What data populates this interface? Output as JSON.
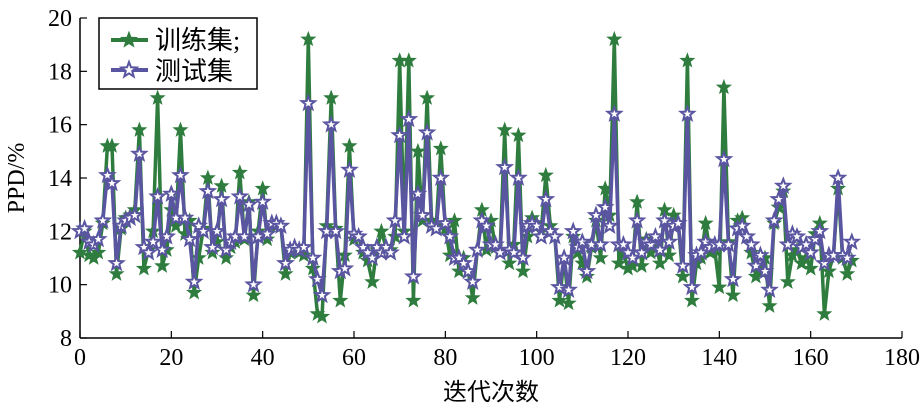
{
  "chart_data": {
    "type": "line",
    "title": "",
    "xlabel": "迭代次数",
    "ylabel": "PPD/%",
    "xlim": [
      0,
      180
    ],
    "ylim": [
      8,
      20
    ],
    "xticks": [
      0,
      20,
      40,
      60,
      80,
      100,
      120,
      140,
      160,
      180
    ],
    "yticks": [
      8,
      10,
      12,
      14,
      16,
      18,
      20
    ],
    "grid": false,
    "legend_position": "top-left",
    "colors": {
      "train": "#2e7d3e",
      "test": "#5a55a0"
    },
    "series": [
      {
        "name": "训练集;",
        "marker": "filled-star",
        "values": [
          11.2,
          12.0,
          11.1,
          11.0,
          11.2,
          12.3,
          15.2,
          15.2,
          10.4,
          12.1,
          12.5,
          12.6,
          12.8,
          15.8,
          10.6,
          11.3,
          12.0,
          17.0,
          10.7,
          11.3,
          12.8,
          12.2,
          15.8,
          11.9,
          12.4,
          9.7,
          11.0,
          12.1,
          14.0,
          11.2,
          11.6,
          13.7,
          11.0,
          11.4,
          11.6,
          14.2,
          11.7,
          13.1,
          9.6,
          12.0,
          13.6,
          11.7,
          12.3,
          12.2,
          12.2,
          10.4,
          11.2,
          11.3,
          11.2,
          11.1,
          19.2,
          10.6,
          8.9,
          8.8,
          12.2,
          17.0,
          12.1,
          9.4,
          11.1,
          15.2,
          11.7,
          11.8,
          11.2,
          10.9,
          10.1,
          11.3,
          12.0,
          11.4,
          11.3,
          11.8,
          18.4,
          12.0,
          18.4,
          9.4,
          15.0,
          12.4,
          17.0,
          12.4,
          12.2,
          15.1,
          12.1,
          11.1,
          12.4,
          10.5,
          11.0,
          10.5,
          9.5,
          11.3,
          12.8,
          11.3,
          12.4,
          11.4,
          11.3,
          15.8,
          10.8,
          11.5,
          15.6,
          10.5,
          11.8,
          12.5,
          12.3,
          12.0,
          14.1,
          12.2,
          11.8,
          9.4,
          11.0,
          9.3,
          11.8,
          11.2,
          10.8,
          10.3,
          11.4,
          12.4,
          11.0,
          13.6,
          12.6,
          19.2,
          10.8,
          11.2,
          10.6,
          10.7,
          13.1,
          10.7,
          11.7,
          11.2,
          11.6,
          10.8,
          12.8,
          11.1,
          12.6,
          12.3,
          10.3,
          18.4,
          9.4,
          10.8,
          11.0,
          12.3,
          11.2,
          11.3,
          9.9,
          17.4,
          11.6,
          9.6,
          12.4,
          12.5,
          11.8,
          11.2,
          10.3,
          10.5,
          11.0,
          9.2,
          12.3,
          12.9,
          13.5,
          10.1,
          11.1,
          11.3,
          10.8,
          11.0,
          10.6,
          11.9,
          12.3,
          8.9,
          10.5,
          11.1,
          13.6,
          11.0,
          10.4,
          10.9
        ]
      },
      {
        "name": "测试集",
        "marker": "hollow-star",
        "values": [
          12.0,
          12.1,
          11.6,
          11.5,
          11.7,
          12.4,
          14.1,
          13.8,
          10.8,
          12.2,
          12.4,
          12.5,
          12.6,
          14.9,
          11.4,
          11.2,
          11.6,
          13.3,
          11.3,
          11.8,
          13.4,
          12.5,
          14.1,
          12.5,
          11.7,
          10.1,
          12.2,
          12.0,
          13.5,
          11.4,
          12.0,
          13.2,
          11.3,
          11.6,
          11.8,
          13.3,
          11.8,
          13.0,
          10.0,
          11.8,
          13.1,
          11.9,
          12.3,
          12.3,
          12.2,
          10.8,
          11.3,
          11.4,
          11.3,
          11.4,
          16.8,
          11.0,
          10.2,
          9.6,
          12.0,
          16.0,
          12.0,
          10.5,
          10.6,
          14.3,
          11.9,
          11.8,
          11.4,
          11.2,
          11.0,
          11.4,
          11.2,
          11.4,
          11.2,
          12.4,
          15.6,
          11.8,
          16.2,
          10.3,
          13.4,
          12.6,
          15.7,
          12.2,
          12.1,
          14.0,
          12.3,
          11.8,
          11.0,
          11.0,
          10.8,
          10.5,
          10.1,
          11.3,
          12.4,
          12.2,
          11.5,
          11.5,
          11.2,
          14.4,
          11.3,
          11.2,
          14.0,
          11.0,
          12.2,
          12.3,
          12.2,
          11.8,
          13.2,
          12.0,
          11.8,
          9.9,
          11.0,
          9.8,
          12.0,
          11.4,
          11.6,
          10.5,
          11.5,
          12.6,
          11.5,
          12.9,
          12.2,
          16.4,
          11.5,
          11.5,
          11.2,
          11.0,
          12.4,
          11.2,
          11.6,
          11.5,
          11.8,
          11.3,
          12.4,
          11.6,
          12.2,
          12.3,
          10.7,
          16.4,
          9.9,
          11.1,
          11.2,
          11.6,
          11.4,
          11.5,
          11.5,
          14.7,
          11.5,
          10.2,
          12.1,
          12.2,
          11.8,
          11.5,
          10.7,
          11.1,
          10.5,
          9.8,
          12.4,
          13.2,
          13.7,
          11.5,
          11.9,
          11.8,
          11.4,
          11.5,
          11.2,
          11.7,
          12.0,
          10.8,
          11.1,
          11.1,
          14.0,
          11.1,
          11.0,
          11.6
        ]
      }
    ]
  }
}
